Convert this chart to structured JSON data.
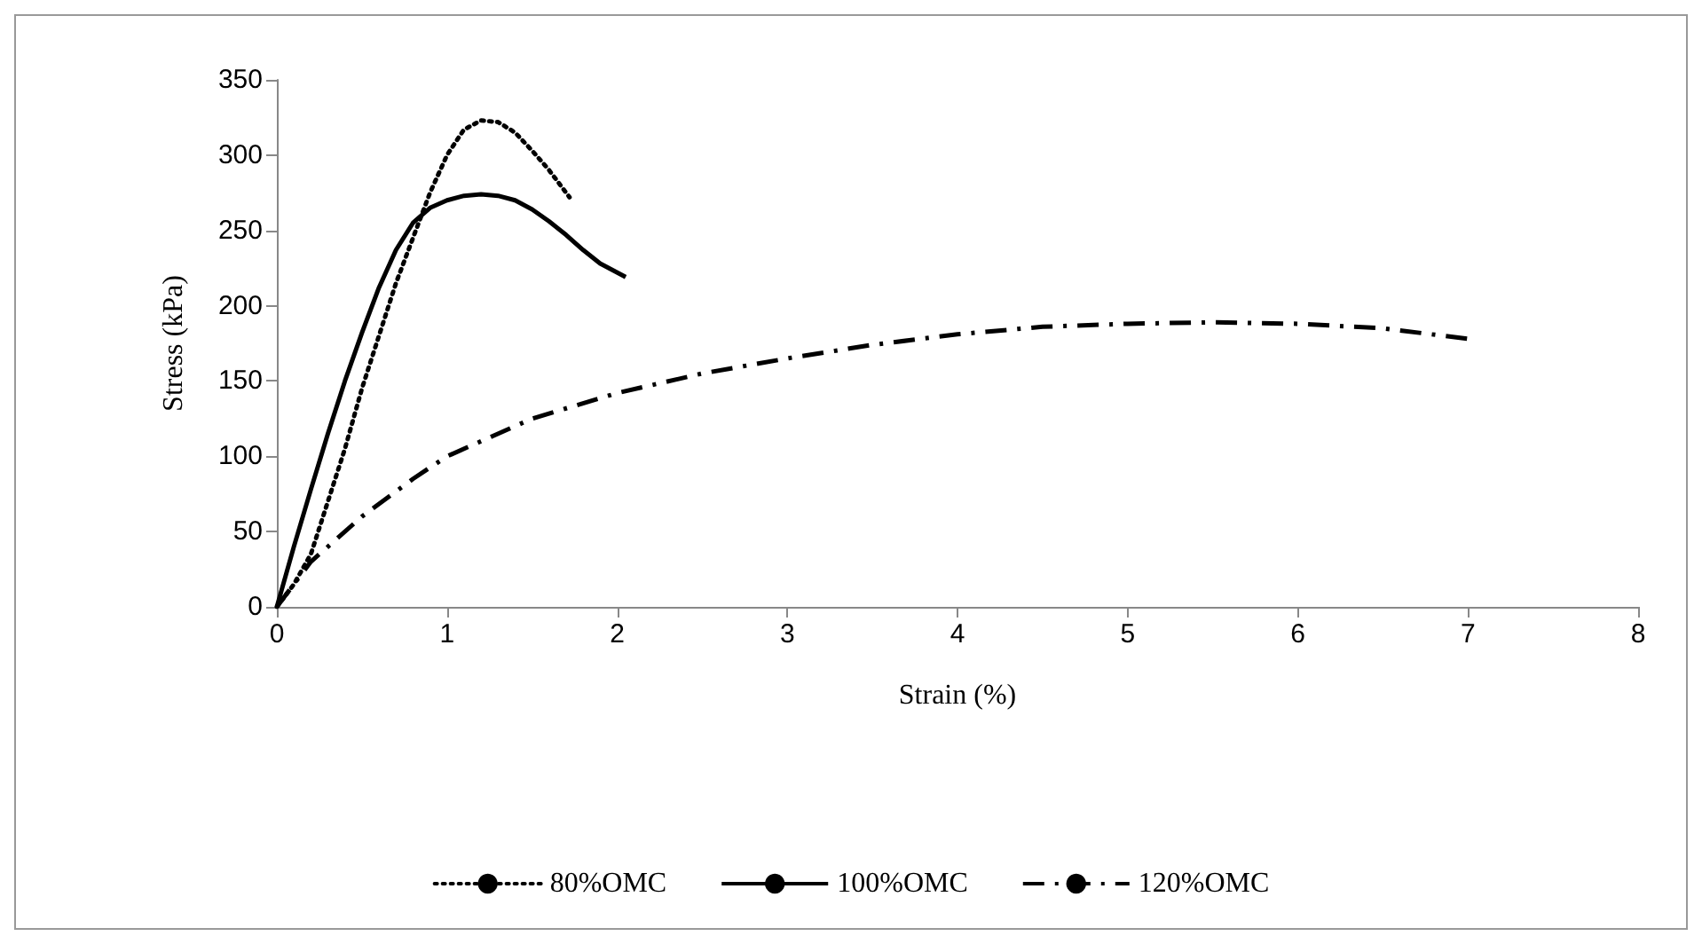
{
  "chart_data": {
    "type": "line",
    "xlabel": "Strain (%)",
    "ylabel": "Stress (kPa)",
    "xlim": [
      0,
      8
    ],
    "xticks": [
      0,
      1,
      2,
      3,
      4,
      5,
      6,
      7,
      8
    ],
    "ylim": [
      0,
      350
    ],
    "yticks": [
      0,
      50,
      100,
      150,
      200,
      250,
      300,
      350
    ],
    "grid": false,
    "legend": "bottom",
    "marker": "none",
    "series": [
      {
        "name": "80%OMC",
        "color": "#000000",
        "line_style": "dotted",
        "x": [
          0,
          0.1,
          0.2,
          0.3,
          0.4,
          0.5,
          0.6,
          0.7,
          0.8,
          0.9,
          1.0,
          1.1,
          1.2,
          1.3,
          1.4,
          1.5,
          1.6,
          1.72
        ],
        "values": [
          0,
          15,
          35,
          70,
          105,
          145,
          180,
          215,
          245,
          275,
          300,
          317,
          323,
          322,
          315,
          303,
          290,
          272
        ]
      },
      {
        "name": "100%OMC",
        "color": "#000000",
        "line_style": "solid",
        "x": [
          0,
          0.1,
          0.2,
          0.3,
          0.4,
          0.5,
          0.6,
          0.7,
          0.8,
          0.9,
          1.0,
          1.1,
          1.2,
          1.3,
          1.4,
          1.5,
          1.6,
          1.7,
          1.8,
          1.9,
          2.05
        ],
        "values": [
          0,
          40,
          78,
          115,
          150,
          182,
          212,
          237,
          255,
          265,
          270,
          273,
          274,
          273,
          270,
          264,
          256,
          247,
          237,
          228,
          219
        ]
      },
      {
        "name": "120%OMC",
        "color": "#000000",
        "line_style": "dashdot",
        "x": [
          0,
          0.2,
          0.5,
          0.8,
          1.0,
          1.5,
          2,
          2.5,
          3,
          3.5,
          4,
          4.5,
          5,
          5.5,
          6,
          6.5,
          7
        ],
        "values": [
          0,
          30,
          60,
          85,
          100,
          125,
          142,
          155,
          165,
          174,
          181,
          186,
          188,
          189,
          188,
          185,
          178
        ]
      }
    ]
  }
}
